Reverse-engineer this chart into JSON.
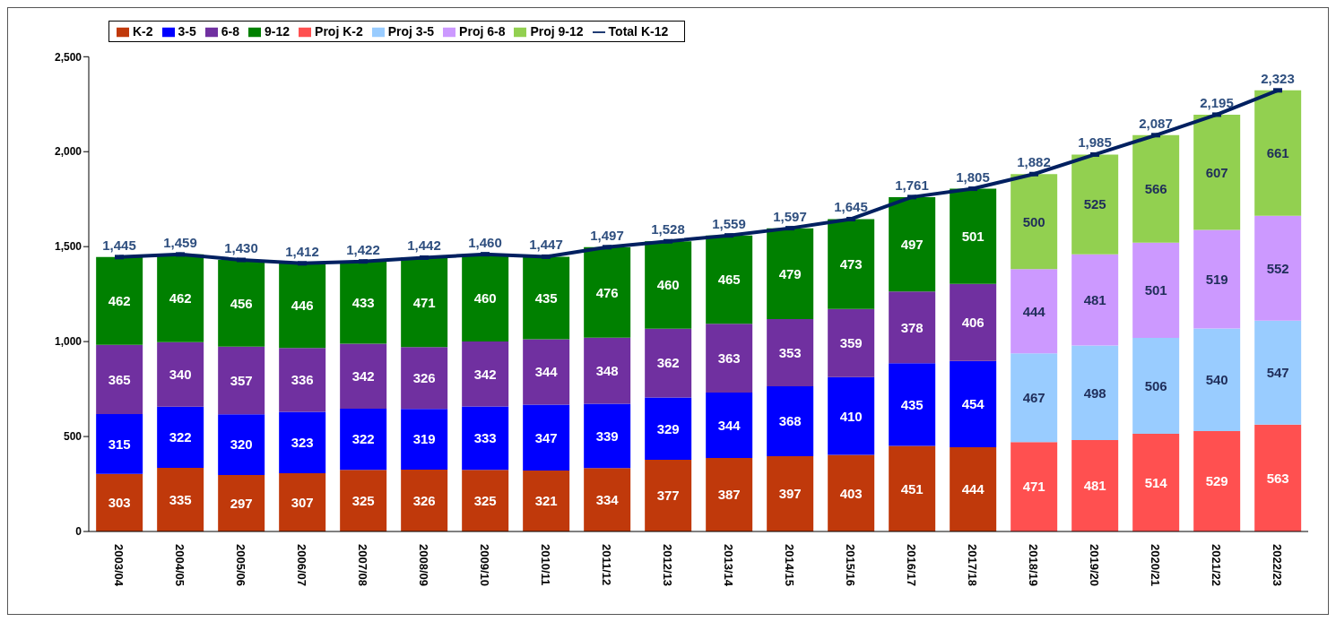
{
  "chart_data": {
    "type": "bar",
    "stacked": true,
    "categories": [
      "2003/04",
      "2004/05",
      "2005/06",
      "2006/07",
      "2007/08",
      "2008/09",
      "2009/10",
      "2010/11",
      "2011/12",
      "2012/13",
      "2013/14",
      "2014/15",
      "2015/16",
      "2016/17",
      "2017/18",
      "2018/19",
      "2019/20",
      "2020/21",
      "2021/22",
      "2022/23"
    ],
    "series": [
      {
        "name": "K-2",
        "color": "#c0390b",
        "values": [
          303,
          335,
          297,
          307,
          325,
          326,
          325,
          321,
          334,
          377,
          387,
          397,
          403,
          451,
          444,
          null,
          null,
          null,
          null,
          null
        ]
      },
      {
        "name": "3-5",
        "color": "#0000ff",
        "values": [
          315,
          322,
          320,
          323,
          322,
          319,
          333,
          347,
          339,
          329,
          344,
          368,
          410,
          435,
          454,
          null,
          null,
          null,
          null,
          null
        ]
      },
      {
        "name": "6-8",
        "color": "#7030a0",
        "values": [
          365,
          340,
          357,
          336,
          342,
          326,
          342,
          344,
          348,
          362,
          363,
          353,
          359,
          378,
          406,
          null,
          null,
          null,
          null,
          null
        ]
      },
      {
        "name": "9-12",
        "color": "#008000",
        "values": [
          462,
          462,
          456,
          446,
          433,
          471,
          460,
          435,
          476,
          460,
          465,
          479,
          473,
          497,
          501,
          null,
          null,
          null,
          null,
          null
        ]
      },
      {
        "name": "Proj K-2",
        "color": "#ff5050",
        "values": [
          null,
          null,
          null,
          null,
          null,
          null,
          null,
          null,
          null,
          null,
          null,
          null,
          null,
          null,
          null,
          471,
          481,
          514,
          529,
          563
        ]
      },
      {
        "name": "Proj 3-5",
        "color": "#99ccff",
        "values": [
          null,
          null,
          null,
          null,
          null,
          null,
          null,
          null,
          null,
          null,
          null,
          null,
          null,
          null,
          null,
          467,
          498,
          506,
          540,
          547
        ]
      },
      {
        "name": "Proj 6-8",
        "color": "#cc99ff",
        "values": [
          null,
          null,
          null,
          null,
          null,
          null,
          null,
          null,
          null,
          null,
          null,
          null,
          null,
          null,
          null,
          444,
          481,
          501,
          519,
          552
        ]
      },
      {
        "name": "Proj 9-12",
        "color": "#92d050",
        "values": [
          null,
          null,
          null,
          null,
          null,
          null,
          null,
          null,
          null,
          null,
          null,
          null,
          null,
          null,
          null,
          500,
          525,
          566,
          607,
          661
        ]
      },
      {
        "name": "Total K-12",
        "type": "line",
        "color": "#002060",
        "values": [
          1445,
          1459,
          1430,
          1412,
          1422,
          1442,
          1460,
          1447,
          1497,
          1528,
          1559,
          1597,
          1645,
          1761,
          1805,
          1882,
          1985,
          2087,
          2195,
          2323
        ],
        "value_labels": [
          "1,445",
          "1,459",
          "1,430",
          "1,412",
          "1,422",
          "1,442",
          "1,460",
          "1,447",
          "1,497",
          "1,528",
          "1,559",
          "1,597",
          "1,645",
          "1,761",
          "1,805",
          "1,882",
          "1,985",
          "2,087",
          "2,195",
          "2,323"
        ]
      }
    ],
    "ylim": [
      0,
      2500
    ],
    "yticks": [
      {
        "value": 0,
        "label": "0"
      },
      {
        "value": 500,
        "label": "500"
      },
      {
        "value": 1000,
        "label": "1,000"
      },
      {
        "value": 1500,
        "label": "1,500"
      },
      {
        "value": 2000,
        "label": "2,000"
      },
      {
        "value": 2500,
        "label": "2,500"
      }
    ],
    "data_labels": true,
    "legend": "top left",
    "marker": "square"
  }
}
